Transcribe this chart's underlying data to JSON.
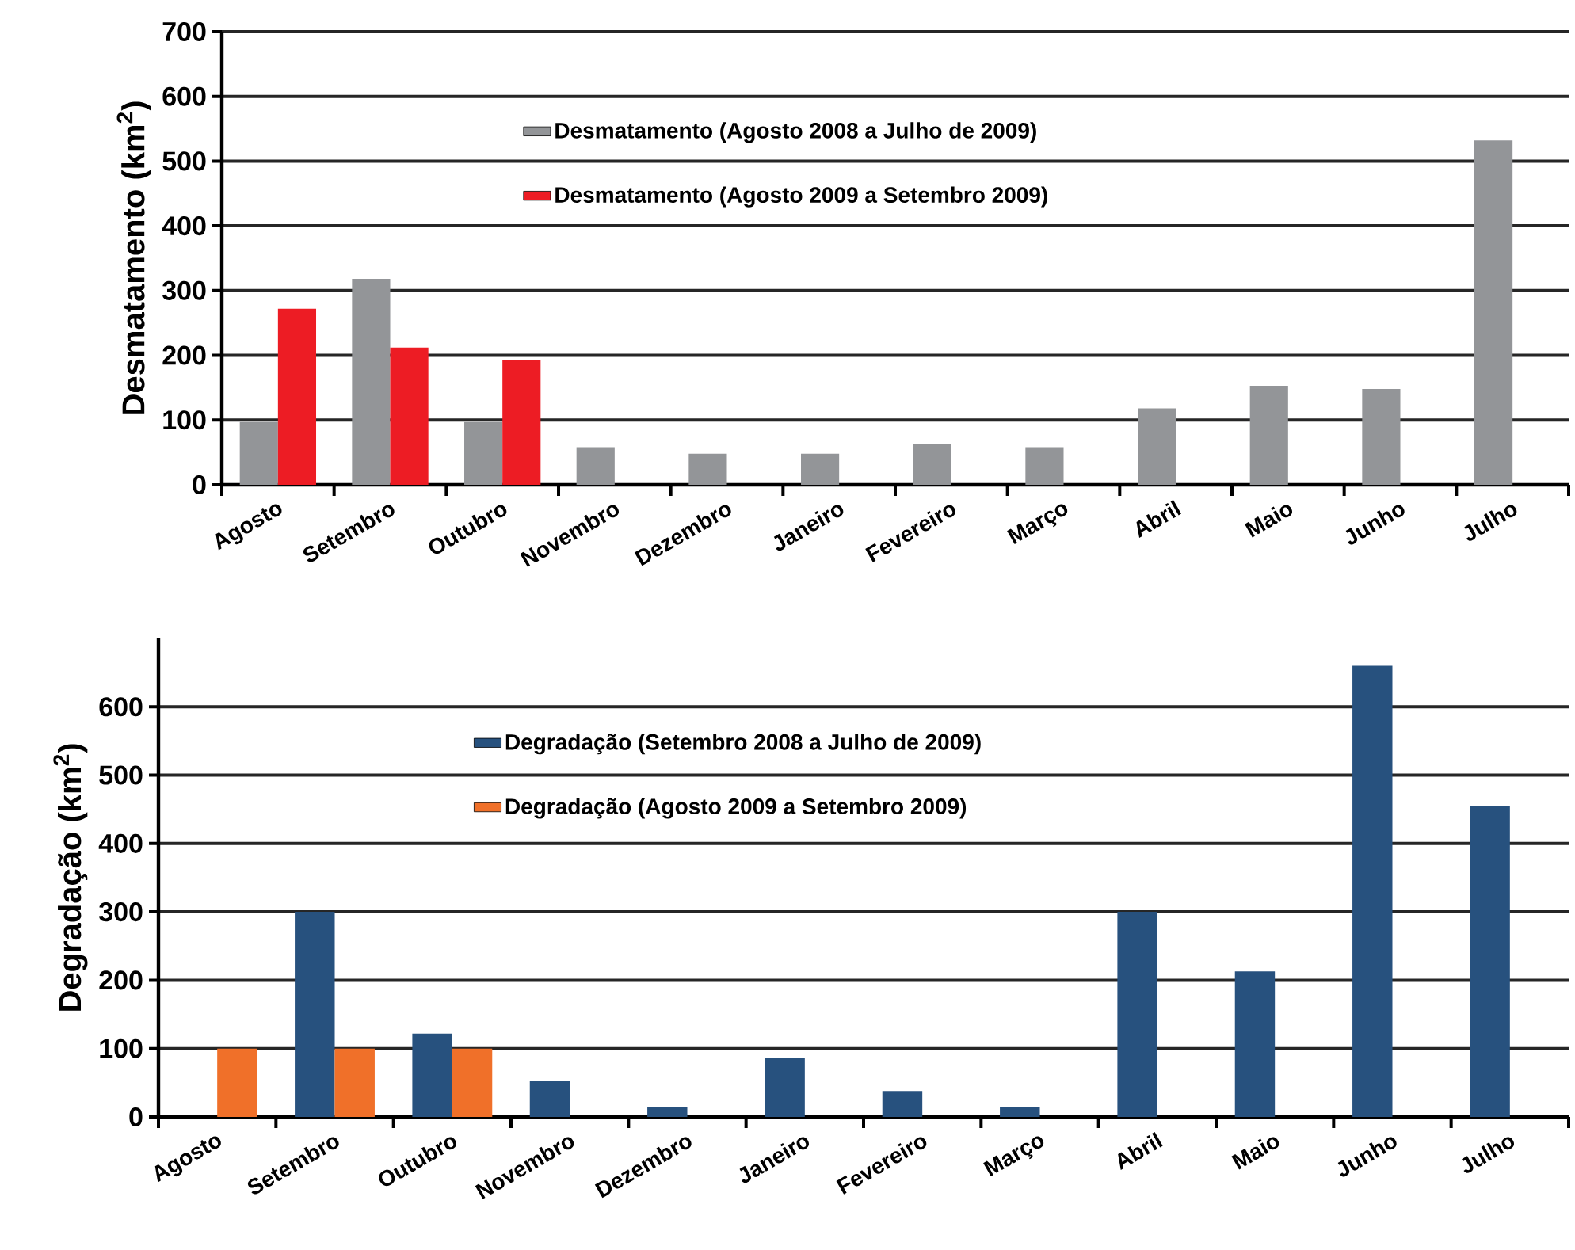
{
  "chart_data": [
    {
      "type": "bar",
      "ylabel": "Desmatamento (km$^{2}$)",
      "categories": [
        "Agosto",
        "Setembro",
        "Outubro",
        "Novembro",
        "Dezembro",
        "Janeiro",
        "Fevereiro",
        "Março",
        "Abril",
        "Maio",
        "Junho",
        "Julho"
      ],
      "series": [
        {
          "name": "Desmatamento  (Agosto 2008 a Julho de 2009)",
          "color": "#939598",
          "values": [
            97,
            318,
            97,
            58,
            48,
            48,
            63,
            58,
            118,
            153,
            148,
            532
          ]
        },
        {
          "name": "Desmatamento  (Agosto 2009 a Setembro 2009)",
          "color": "#ed1c24",
          "values": [
            272,
            212,
            193,
            null,
            null,
            null,
            null,
            null,
            null,
            null,
            null,
            null
          ]
        }
      ],
      "ylim": [
        0,
        700
      ],
      "yticks": [
        0,
        100,
        200,
        300,
        400,
        500,
        600,
        700
      ],
      "grid": "y",
      "legend": "top"
    },
    {
      "type": "bar",
      "ylabel": "Degradação (km$^{2}$)",
      "categories": [
        "Agosto",
        "Setembro",
        "Outubro",
        "Novembro",
        "Dezembro",
        "Janeiro",
        "Fevereiro",
        "Março",
        "Abril",
        "Maio",
        "Junho",
        "Julho"
      ],
      "series": [
        {
          "name": "Degradação  (Setembro 2008 a Julho de 2009)",
          "color": "#27517e",
          "values": [
            null,
            300,
            122,
            52,
            14,
            86,
            38,
            14,
            300,
            213,
            660,
            455
          ]
        },
        {
          "name": "Degradação  (Agosto 2009 a Setembro 2009)",
          "color": "#f07029",
          "values": [
            100,
            100,
            100,
            null,
            null,
            null,
            null,
            null,
            null,
            null,
            null,
            null
          ]
        }
      ],
      "ylim": [
        0,
        700
      ],
      "yticks": [
        0,
        100,
        200,
        300,
        400,
        500,
        600
      ],
      "grid": "y",
      "legend": "top"
    }
  ]
}
